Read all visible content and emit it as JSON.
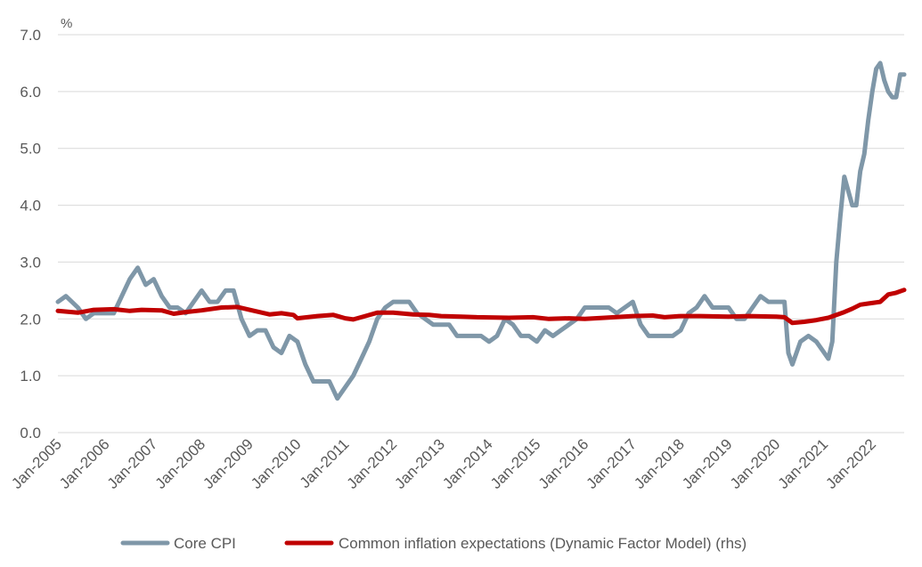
{
  "chart_data": {
    "type": "line",
    "unit_label": "%",
    "ylim": [
      0,
      7
    ],
    "yticks": [
      0,
      1,
      2,
      3,
      4,
      5,
      6,
      7
    ],
    "ytick_labels": [
      "0.0",
      "1.0",
      "2.0",
      "3.0",
      "4.0",
      "5.0",
      "6.0",
      "7.0"
    ],
    "xlim": [
      "2005-01",
      "2022-09"
    ],
    "xtick_labels": [
      "Jan-2005",
      "Jan-2006",
      "Jan-2007",
      "Jan-2008",
      "Jan-2009",
      "Jan-2010",
      "Jan-2011",
      "Jan-2012",
      "Jan-2013",
      "Jan-2014",
      "Jan-2015",
      "Jan-2016",
      "Jan-2017",
      "Jan-2018",
      "Jan-2019",
      "Jan-2020",
      "Jan-2021",
      "Jan-2022"
    ],
    "grid": "horizontal",
    "legend_position": "bottom",
    "series": [
      {
        "name": "Core CPI",
        "color": "#7f97a8",
        "points": [
          [
            "2005-01",
            2.3
          ],
          [
            "2005-03",
            2.4
          ],
          [
            "2005-06",
            2.2
          ],
          [
            "2005-08",
            2.0
          ],
          [
            "2005-10",
            2.1
          ],
          [
            "2005-12",
            2.1
          ],
          [
            "2006-03",
            2.1
          ],
          [
            "2006-05",
            2.4
          ],
          [
            "2006-07",
            2.7
          ],
          [
            "2006-09",
            2.9
          ],
          [
            "2006-11",
            2.6
          ],
          [
            "2007-01",
            2.7
          ],
          [
            "2007-03",
            2.4
          ],
          [
            "2007-05",
            2.2
          ],
          [
            "2007-07",
            2.2
          ],
          [
            "2007-09",
            2.1
          ],
          [
            "2007-11",
            2.3
          ],
          [
            "2008-01",
            2.5
          ],
          [
            "2008-03",
            2.3
          ],
          [
            "2008-05",
            2.3
          ],
          [
            "2008-07",
            2.5
          ],
          [
            "2008-09",
            2.5
          ],
          [
            "2008-11",
            2.0
          ],
          [
            "2009-01",
            1.7
          ],
          [
            "2009-03",
            1.8
          ],
          [
            "2009-05",
            1.8
          ],
          [
            "2009-07",
            1.5
          ],
          [
            "2009-09",
            1.4
          ],
          [
            "2009-11",
            1.7
          ],
          [
            "2010-01",
            1.6
          ],
          [
            "2010-03",
            1.2
          ],
          [
            "2010-05",
            0.9
          ],
          [
            "2010-07",
            0.9
          ],
          [
            "2010-09",
            0.9
          ],
          [
            "2010-11",
            0.6
          ],
          [
            "2011-01",
            0.8
          ],
          [
            "2011-03",
            1.0
          ],
          [
            "2011-05",
            1.3
          ],
          [
            "2011-07",
            1.6
          ],
          [
            "2011-09",
            2.0
          ],
          [
            "2011-11",
            2.2
          ],
          [
            "2012-01",
            2.3
          ],
          [
            "2012-03",
            2.3
          ],
          [
            "2012-05",
            2.3
          ],
          [
            "2012-07",
            2.1
          ],
          [
            "2012-09",
            2.0
          ],
          [
            "2012-11",
            1.9
          ],
          [
            "2013-01",
            1.9
          ],
          [
            "2013-03",
            1.9
          ],
          [
            "2013-05",
            1.7
          ],
          [
            "2013-07",
            1.7
          ],
          [
            "2013-09",
            1.7
          ],
          [
            "2013-11",
            1.7
          ],
          [
            "2014-01",
            1.6
          ],
          [
            "2014-03",
            1.7
          ],
          [
            "2014-05",
            2.0
          ],
          [
            "2014-07",
            1.9
          ],
          [
            "2014-09",
            1.7
          ],
          [
            "2014-11",
            1.7
          ],
          [
            "2015-01",
            1.6
          ],
          [
            "2015-03",
            1.8
          ],
          [
            "2015-05",
            1.7
          ],
          [
            "2015-07",
            1.8
          ],
          [
            "2015-09",
            1.9
          ],
          [
            "2015-11",
            2.0
          ],
          [
            "2016-01",
            2.2
          ],
          [
            "2016-03",
            2.2
          ],
          [
            "2016-05",
            2.2
          ],
          [
            "2016-07",
            2.2
          ],
          [
            "2016-09",
            2.1
          ],
          [
            "2016-11",
            2.2
          ],
          [
            "2017-01",
            2.3
          ],
          [
            "2017-03",
            1.9
          ],
          [
            "2017-05",
            1.7
          ],
          [
            "2017-07",
            1.7
          ],
          [
            "2017-09",
            1.7
          ],
          [
            "2017-11",
            1.7
          ],
          [
            "2018-01",
            1.8
          ],
          [
            "2018-03",
            2.1
          ],
          [
            "2018-05",
            2.2
          ],
          [
            "2018-07",
            2.4
          ],
          [
            "2018-09",
            2.2
          ],
          [
            "2018-11",
            2.2
          ],
          [
            "2019-01",
            2.2
          ],
          [
            "2019-03",
            2.0
          ],
          [
            "2019-05",
            2.0
          ],
          [
            "2019-07",
            2.2
          ],
          [
            "2019-09",
            2.4
          ],
          [
            "2019-11",
            2.3
          ],
          [
            "2020-01",
            2.3
          ],
          [
            "2020-03",
            2.3
          ],
          [
            "2020-04",
            1.4
          ],
          [
            "2020-05",
            1.2
          ],
          [
            "2020-07",
            1.6
          ],
          [
            "2020-09",
            1.7
          ],
          [
            "2020-11",
            1.6
          ],
          [
            "2021-01",
            1.4
          ],
          [
            "2021-02",
            1.3
          ],
          [
            "2021-03",
            1.6
          ],
          [
            "2021-04",
            3.0
          ],
          [
            "2021-05",
            3.8
          ],
          [
            "2021-06",
            4.5
          ],
          [
            "2021-08",
            4.0
          ],
          [
            "2021-09",
            4.0
          ],
          [
            "2021-10",
            4.6
          ],
          [
            "2021-11",
            4.9
          ],
          [
            "2021-12",
            5.5
          ],
          [
            "2022-01",
            6.0
          ],
          [
            "2022-02",
            6.4
          ],
          [
            "2022-03",
            6.5
          ],
          [
            "2022-04",
            6.2
          ],
          [
            "2022-05",
            6.0
          ],
          [
            "2022-06",
            5.9
          ],
          [
            "2022-07",
            5.9
          ],
          [
            "2022-08",
            6.3
          ],
          [
            "2022-09",
            6.3
          ]
        ]
      },
      {
        "name": "Common inflation expectations (Dynamic Factor Model) (rhs)",
        "color": "#c00000",
        "points": [
          [
            "2005-01",
            2.14
          ],
          [
            "2005-06",
            2.11
          ],
          [
            "2005-10",
            2.16
          ],
          [
            "2006-03",
            2.17
          ],
          [
            "2006-07",
            2.14
          ],
          [
            "2006-10",
            2.16
          ],
          [
            "2007-03",
            2.15
          ],
          [
            "2007-06",
            2.09
          ],
          [
            "2007-09",
            2.12
          ],
          [
            "2008-01",
            2.15
          ],
          [
            "2008-06",
            2.2
          ],
          [
            "2008-10",
            2.21
          ],
          [
            "2009-01",
            2.16
          ],
          [
            "2009-06",
            2.08
          ],
          [
            "2009-09",
            2.1
          ],
          [
            "2009-12",
            2.07
          ],
          [
            "2010-01",
            2.01
          ],
          [
            "2010-06",
            2.05
          ],
          [
            "2010-10",
            2.07
          ],
          [
            "2011-01",
            2.01
          ],
          [
            "2011-03",
            1.99
          ],
          [
            "2011-06",
            2.05
          ],
          [
            "2011-09",
            2.11
          ],
          [
            "2012-01",
            2.11
          ],
          [
            "2012-06",
            2.08
          ],
          [
            "2012-10",
            2.07
          ],
          [
            "2013-01",
            2.05
          ],
          [
            "2013-06",
            2.04
          ],
          [
            "2013-10",
            2.03
          ],
          [
            "2014-06",
            2.02
          ],
          [
            "2014-12",
            2.03
          ],
          [
            "2015-04",
            2.0
          ],
          [
            "2015-09",
            2.01
          ],
          [
            "2016-01",
            2.0
          ],
          [
            "2016-06",
            2.02
          ],
          [
            "2017-01",
            2.05
          ],
          [
            "2017-06",
            2.06
          ],
          [
            "2017-09",
            2.03
          ],
          [
            "2018-01",
            2.05
          ],
          [
            "2018-06",
            2.05
          ],
          [
            "2019-01",
            2.04
          ],
          [
            "2019-06",
            2.05
          ],
          [
            "2020-01",
            2.04
          ],
          [
            "2020-03",
            2.03
          ],
          [
            "2020-05",
            1.93
          ],
          [
            "2020-08",
            1.95
          ],
          [
            "2020-11",
            1.98
          ],
          [
            "2021-02",
            2.02
          ],
          [
            "2021-06",
            2.12
          ],
          [
            "2021-08",
            2.18
          ],
          [
            "2021-10",
            2.25
          ],
          [
            "2021-12",
            2.27
          ],
          [
            "2022-03",
            2.3
          ],
          [
            "2022-05",
            2.43
          ],
          [
            "2022-07",
            2.46
          ],
          [
            "2022-09",
            2.51
          ]
        ]
      }
    ]
  }
}
